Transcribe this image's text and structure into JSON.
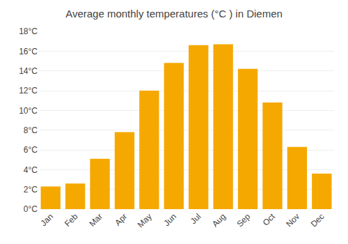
{
  "chart_data": {
    "type": "bar",
    "title": "Average monthly temperatures (°C ) in Diemen",
    "categories": [
      "Jan",
      "Feb",
      "Mar",
      "Apr",
      "May",
      "Jun",
      "Jul",
      "Aug",
      "Sep",
      "Oct",
      "Nov",
      "Dec"
    ],
    "values": [
      2.3,
      2.6,
      5.1,
      7.8,
      12.0,
      14.8,
      16.6,
      16.7,
      14.2,
      10.8,
      6.3,
      3.6
    ],
    "color": "#F5A800",
    "ylim": [
      0,
      18
    ],
    "yticks": [
      {
        "value": 0,
        "label": "0°C"
      },
      {
        "value": 2,
        "label": "2°C"
      },
      {
        "value": 4,
        "label": "4°C"
      },
      {
        "value": 6,
        "label": "6°C"
      },
      {
        "value": 8,
        "label": "8°C"
      },
      {
        "value": 10,
        "label": "10°C"
      },
      {
        "value": 12,
        "label": "12°C"
      },
      {
        "value": 14,
        "label": "14°C"
      },
      {
        "value": 16,
        "label": "16°C"
      },
      {
        "value": 18,
        "label": "18°C"
      }
    ],
    "grid": true
  }
}
